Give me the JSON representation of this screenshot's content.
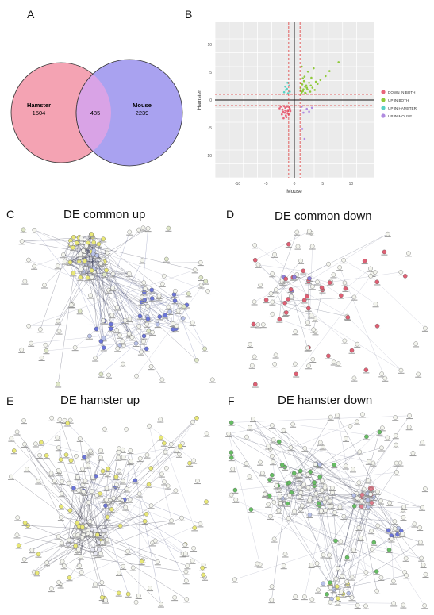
{
  "panels": {
    "a": {
      "letter": "A",
      "venn": {
        "left": {
          "name": "Hamster",
          "count": "1504",
          "color": "#f4a3b3"
        },
        "overlap": {
          "count": "485",
          "color": "#d9a3e6"
        },
        "right": {
          "name": "Mouse",
          "count": "2239",
          "color": "#a9a2f0"
        }
      }
    },
    "b": {
      "letter": "B"
    },
    "c": {
      "letter": "C",
      "title": "DE common up"
    },
    "d": {
      "letter": "D",
      "title": "DE common down"
    },
    "e": {
      "letter": "E",
      "title": "DE hamster up"
    },
    "f": {
      "letter": "F",
      "title": "DE hamster down"
    }
  },
  "chart_data": {
    "type": "scatter",
    "xlabel": "Mouse",
    "ylabel": "Hamster",
    "xlim": [
      -14,
      14
    ],
    "ylim": [
      -14,
      14
    ],
    "xticks": [
      -10,
      -5,
      0,
      5,
      10
    ],
    "yticks": [
      -10,
      -5,
      0,
      5,
      10
    ],
    "grid": true,
    "legend_position": "right",
    "series": [
      {
        "name": "DOWN IN BOTH",
        "color": "#e8657a",
        "points": [
          [
            -1.6,
            -1.4
          ],
          [
            -1.2,
            -2.0
          ],
          [
            -1.8,
            -1.1
          ],
          [
            -1.0,
            -2.6
          ],
          [
            -2.1,
            -1.7
          ],
          [
            -1.4,
            -3.1
          ],
          [
            -0.9,
            -1.3
          ],
          [
            -1.7,
            -2.3
          ],
          [
            -2.4,
            -1.2
          ],
          [
            -1.1,
            -1.8
          ],
          [
            -1.5,
            -2.8
          ],
          [
            -2.0,
            -2.1
          ],
          [
            -0.8,
            -1.6
          ],
          [
            -1.3,
            -1.2
          ],
          [
            -1.9,
            -3.3
          ],
          [
            -2.6,
            -1.5
          ],
          [
            -1.2,
            -2.4
          ],
          [
            -0.7,
            -2.0
          ],
          [
            -1.6,
            -1.9
          ],
          [
            -2.2,
            -2.6
          ]
        ]
      },
      {
        "name": "UP IN BOTH",
        "color": "#8fca3a",
        "points": [
          [
            1.2,
            1.1
          ],
          [
            1.5,
            1.6
          ],
          [
            1.1,
            2.1
          ],
          [
            1.9,
            1.3
          ],
          [
            2.3,
            1.9
          ],
          [
            1.4,
            2.8
          ],
          [
            2.8,
            1.5
          ],
          [
            1.7,
            3.4
          ],
          [
            3.2,
            2.2
          ],
          [
            2.1,
            2.6
          ],
          [
            1.3,
            1.4
          ],
          [
            2.6,
            3.1
          ],
          [
            3.6,
            1.8
          ],
          [
            1.8,
            4.2
          ],
          [
            4.1,
            2.9
          ],
          [
            2.4,
            5.1
          ],
          [
            1.2,
            3.0
          ],
          [
            3.0,
            4.0
          ],
          [
            1.6,
            1.9
          ],
          [
            2.0,
            1.2
          ],
          [
            4.6,
            3.6
          ],
          [
            1.3,
            6.0
          ],
          [
            5.5,
            4.3
          ],
          [
            3.4,
            5.7
          ],
          [
            7.8,
            6.8
          ],
          [
            1.1,
            1.7
          ],
          [
            2.2,
            2.2
          ],
          [
            1.9,
            2.4
          ],
          [
            2.9,
            2.6
          ],
          [
            1.5,
            3.9
          ],
          [
            6.2,
            5.2
          ],
          [
            3.8,
            3.3
          ]
        ]
      },
      {
        "name": "UP IN HAMSTER",
        "color": "#5ad2c4",
        "points": [
          [
            -1.1,
            1.2
          ],
          [
            -1.5,
            1.8
          ],
          [
            -0.9,
            2.6
          ],
          [
            -1.3,
            2.0
          ],
          [
            -1.8,
            1.4
          ],
          [
            -0.8,
            1.5
          ],
          [
            -1.2,
            3.1
          ],
          [
            -1.6,
            2.4
          ]
        ]
      },
      {
        "name": "UP IN MOUSE",
        "color": "#b08be0",
        "points": [
          [
            1.3,
            -1.2
          ],
          [
            2.2,
            -1.6
          ],
          [
            1.6,
            -2.3
          ],
          [
            3.1,
            -1.4
          ],
          [
            1.1,
            -1.8
          ],
          [
            2.6,
            -2.1
          ],
          [
            1.4,
            -5.2
          ],
          [
            1.8,
            -7.0
          ]
        ]
      }
    ],
    "threshold_lines": [
      -1,
      1
    ],
    "center_lines": [
      0
    ]
  }
}
